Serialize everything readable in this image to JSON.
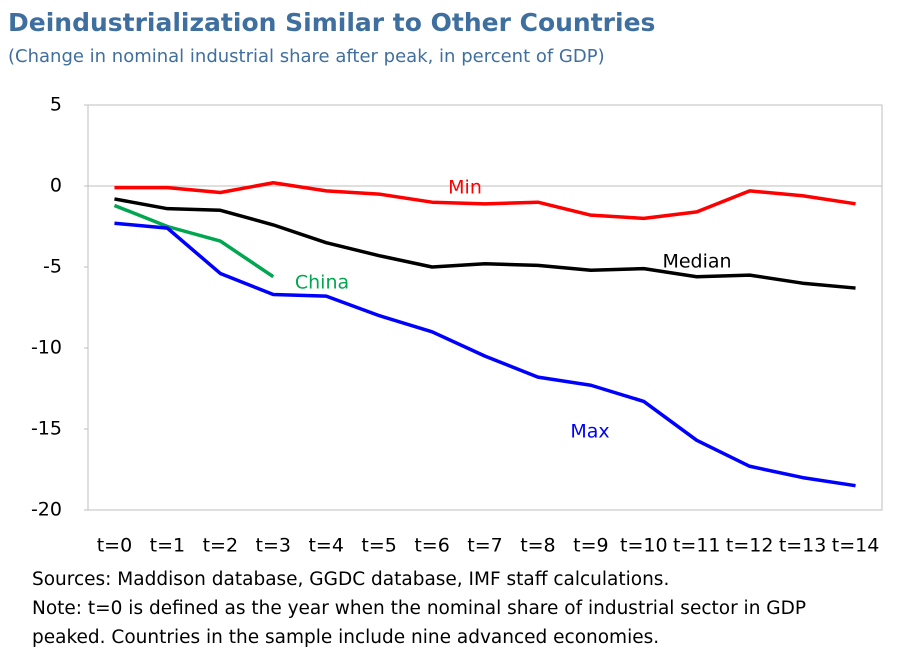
{
  "chart_data": {
    "type": "line",
    "title": "Deindustrialization Similar to Other Countries",
    "subtitle": "(Change in nominal industrial share after peak, in percent of GDP)",
    "categories": [
      "t=0",
      "t=1",
      "t=2",
      "t=3",
      "t=4",
      "t=5",
      "t=6",
      "t=7",
      "t=8",
      "t=9",
      "t=10",
      "t=11",
      "t=12",
      "t=13",
      "t=14"
    ],
    "series": [
      {
        "name": "Min",
        "color": "#ff0000",
        "values": [
          -0.1,
          -0.1,
          -0.4,
          0.2,
          -0.3,
          -0.5,
          -1.0,
          -1.1,
          -1.0,
          -1.8,
          -2.0,
          -1.6,
          -0.3,
          -0.6,
          -1.1
        ]
      },
      {
        "name": "Median",
        "color": "#000000",
        "values": [
          -0.8,
          -1.4,
          -1.5,
          -2.4,
          -3.5,
          -4.3,
          -5.0,
          -4.8,
          -4.9,
          -5.2,
          -5.1,
          -5.6,
          -5.5,
          -6.0,
          -6.3
        ]
      },
      {
        "name": "China",
        "color": "#00a650",
        "values": [
          -1.2,
          -2.5,
          -3.4,
          -5.6,
          null,
          null,
          null,
          null,
          null,
          null,
          null,
          null,
          null,
          null,
          null
        ]
      },
      {
        "name": "Max",
        "color": "#0000ff",
        "values": [
          -2.3,
          -2.6,
          -5.4,
          -6.7,
          -6.8,
          -8.0,
          -9.0,
          -10.5,
          -11.8,
          -12.3,
          -13.3,
          -15.7,
          -17.3,
          -18.0,
          -18.5
        ]
      }
    ],
    "ylim": [
      -20,
      5
    ],
    "yticks": [
      -20,
      -15,
      -10,
      -5,
      0,
      5
    ],
    "grid": false,
    "sources": "Sources: Maddison database, GGDC database, IMF staff calculations.",
    "note": "Note: t=0 is defined as the year when the nominal share of industrial sector in GDP peaked. Countries in the sample include nine  advanced economies."
  }
}
